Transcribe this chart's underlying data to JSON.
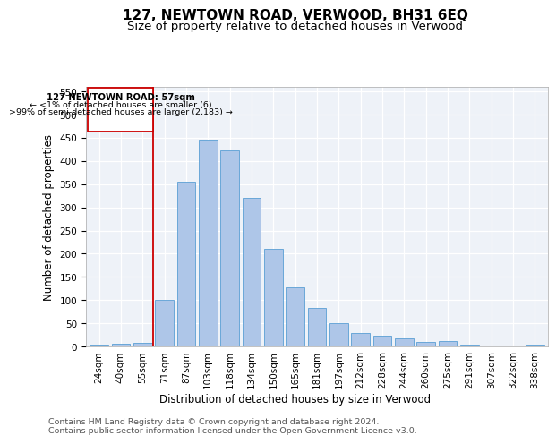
{
  "title": "127, NEWTOWN ROAD, VERWOOD, BH31 6EQ",
  "subtitle": "Size of property relative to detached houses in Verwood",
  "xlabel": "Distribution of detached houses by size in Verwood",
  "ylabel": "Number of detached properties",
  "footnote1": "Contains HM Land Registry data © Crown copyright and database right 2024.",
  "footnote2": "Contains public sector information licensed under the Open Government Licence v3.0.",
  "annotation_line1": "127 NEWTOWN ROAD: 57sqm",
  "annotation_line2": "← <1% of detached houses are smaller (6)",
  "annotation_line3": ">99% of semi-detached houses are larger (2,183) →",
  "bar_labels": [
    "24sqm",
    "40sqm",
    "55sqm",
    "71sqm",
    "87sqm",
    "103sqm",
    "118sqm",
    "134sqm",
    "150sqm",
    "165sqm",
    "181sqm",
    "197sqm",
    "212sqm",
    "228sqm",
    "244sqm",
    "260sqm",
    "275sqm",
    "291sqm",
    "307sqm",
    "322sqm",
    "338sqm"
  ],
  "bar_values": [
    3,
    6,
    8,
    100,
    355,
    447,
    423,
    320,
    210,
    128,
    83,
    50,
    29,
    24,
    17,
    10,
    11,
    3,
    2,
    0,
    4
  ],
  "bar_color": "#aec6e8",
  "bar_edge_color": "#5a9fd4",
  "red_line_x": 2.5,
  "annotation_box_color": "#cc0000",
  "ylim": [
    0,
    560
  ],
  "yticks": [
    0,
    50,
    100,
    150,
    200,
    250,
    300,
    350,
    400,
    450,
    500,
    550
  ],
  "bg_color": "#eef2f8",
  "grid_color": "#ffffff",
  "title_fontsize": 11,
  "subtitle_fontsize": 9.5,
  "axis_label_fontsize": 8.5,
  "tick_fontsize": 7.5,
  "footnote_fontsize": 6.8
}
